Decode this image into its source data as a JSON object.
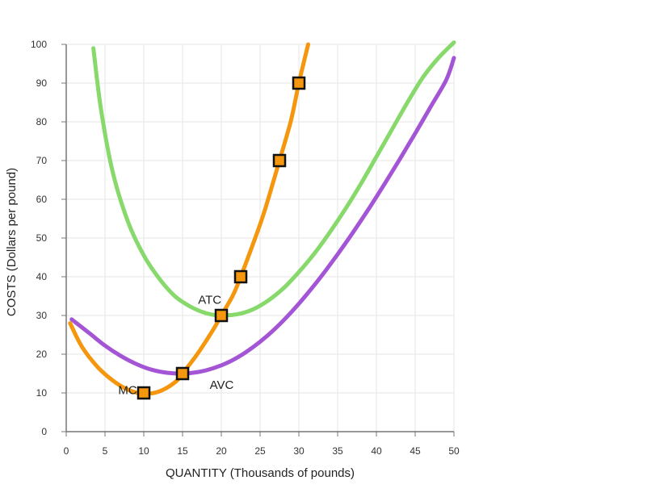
{
  "chart_data": {
    "type": "line",
    "xlabel": "QUANTITY (Thousands of pounds)",
    "ylabel": "COSTS (Dollars per pound)",
    "xlim": [
      0,
      50
    ],
    "ylim": [
      0,
      100
    ],
    "xticks": [
      0,
      5,
      10,
      15,
      20,
      25,
      30,
      35,
      40,
      45,
      50
    ],
    "yticks": [
      0,
      10,
      20,
      30,
      40,
      50,
      60,
      70,
      80,
      90,
      100
    ],
    "grid": true,
    "series": [
      {
        "name": "ATC",
        "color": "#86d96a",
        "points": [
          [
            3.5,
            99
          ],
          [
            4.5,
            83
          ],
          [
            6,
            67
          ],
          [
            8,
            54
          ],
          [
            10,
            45.5
          ],
          [
            12,
            39.5
          ],
          [
            14,
            35
          ],
          [
            16,
            32.3
          ],
          [
            18,
            30.6
          ],
          [
            20,
            30
          ],
          [
            22,
            30.3
          ],
          [
            24,
            31.5
          ],
          [
            26,
            33.8
          ],
          [
            28,
            37
          ],
          [
            30,
            41.2
          ],
          [
            32,
            46
          ],
          [
            34,
            51.5
          ],
          [
            36,
            57.5
          ],
          [
            38,
            64
          ],
          [
            40,
            71
          ],
          [
            42,
            78
          ],
          [
            44,
            85
          ],
          [
            46,
            91.5
          ],
          [
            48,
            96.5
          ],
          [
            50,
            100.5
          ]
        ],
        "label_at": [
          17,
          33
        ]
      },
      {
        "name": "AVC",
        "color": "#a455d5",
        "points": [
          [
            0.7,
            29
          ],
          [
            3,
            25.4
          ],
          [
            5,
            22.2
          ],
          [
            7,
            19.6
          ],
          [
            9,
            17.5
          ],
          [
            11,
            16
          ],
          [
            13,
            15.2
          ],
          [
            15,
            15
          ],
          [
            17,
            15.4
          ],
          [
            19,
            16.4
          ],
          [
            21,
            18
          ],
          [
            23,
            20.3
          ],
          [
            25,
            23.2
          ],
          [
            27,
            26.7
          ],
          [
            29,
            30.8
          ],
          [
            31,
            35.4
          ],
          [
            33,
            40.4
          ],
          [
            35,
            45.8
          ],
          [
            37,
            51.5
          ],
          [
            39,
            57.5
          ],
          [
            41,
            63.8
          ],
          [
            43,
            70.3
          ],
          [
            45,
            77
          ],
          [
            47,
            83.9
          ],
          [
            49,
            90.8
          ],
          [
            50,
            96.5
          ]
        ],
        "label_at": [
          18.5,
          11
        ]
      },
      {
        "name": "MC",
        "color": "#f5970e",
        "points": [
          [
            0.5,
            28
          ],
          [
            2,
            22
          ],
          [
            4,
            16.8
          ],
          [
            6,
            13.2
          ],
          [
            8,
            10.8
          ],
          [
            10,
            9.8
          ],
          [
            12,
            10.4
          ],
          [
            14,
            12.7
          ],
          [
            15,
            15
          ],
          [
            17,
            20.3
          ],
          [
            19,
            26.5
          ],
          [
            20,
            30
          ],
          [
            21.5,
            35.2
          ],
          [
            22.5,
            40
          ],
          [
            24,
            48
          ],
          [
            25.5,
            56.5
          ],
          [
            27.5,
            70
          ],
          [
            29,
            80.5
          ],
          [
            30,
            90
          ],
          [
            31.2,
            100
          ]
        ],
        "label_at": [
          6.7,
          9.7
        ]
      }
    ],
    "markers": {
      "color": "#f5970e",
      "series": "MC",
      "points": [
        [
          10,
          10
        ],
        [
          15,
          15
        ],
        [
          20,
          30
        ],
        [
          22.5,
          40
        ],
        [
          27.5,
          70
        ],
        [
          30,
          90
        ]
      ]
    },
    "colors": {
      "axis": "#777777",
      "grid": "#e6e6e6",
      "marker_stroke": "#111111"
    }
  }
}
